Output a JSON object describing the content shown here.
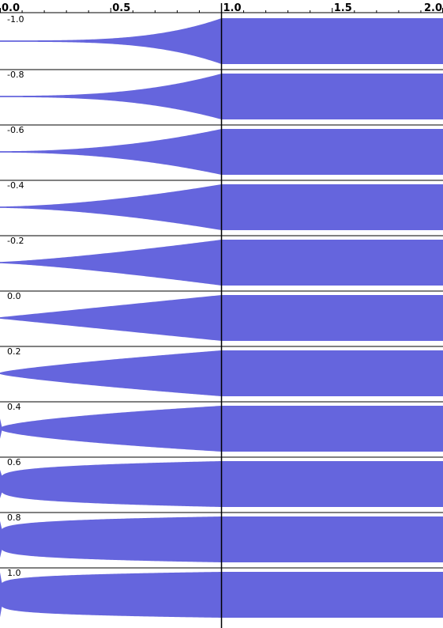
{
  "chart_data": {
    "type": "area",
    "title": "",
    "xlabel": "",
    "ylabel": "",
    "xlim": [
      0.0,
      2.0
    ],
    "x_ticks": [
      "0.0",
      "0.5",
      "1.0",
      "1.5",
      "2.0"
    ],
    "x_tick_values": [
      0.0,
      0.5,
      1.0,
      1.5,
      2.0
    ],
    "marker_x": 1.0,
    "fill_color": "#6565dd",
    "grid": false,
    "legend": "none",
    "series": [
      {
        "label": "-1.0",
        "param": -1.0
      },
      {
        "label": "-0.8",
        "param": -0.8
      },
      {
        "label": "-0.6",
        "param": -0.6
      },
      {
        "label": "-0.4",
        "param": -0.4
      },
      {
        "label": "-0.2",
        "param": -0.2
      },
      {
        "label": "0.0",
        "param": 0.0
      },
      {
        "label": "0.2",
        "param": 0.2
      },
      {
        "label": "0.4",
        "param": 0.4
      },
      {
        "label": "0.6",
        "param": 0.6
      },
      {
        "label": "0.8",
        "param": 0.8
      },
      {
        "label": "1.0",
        "param": 1.0
      }
    ]
  }
}
